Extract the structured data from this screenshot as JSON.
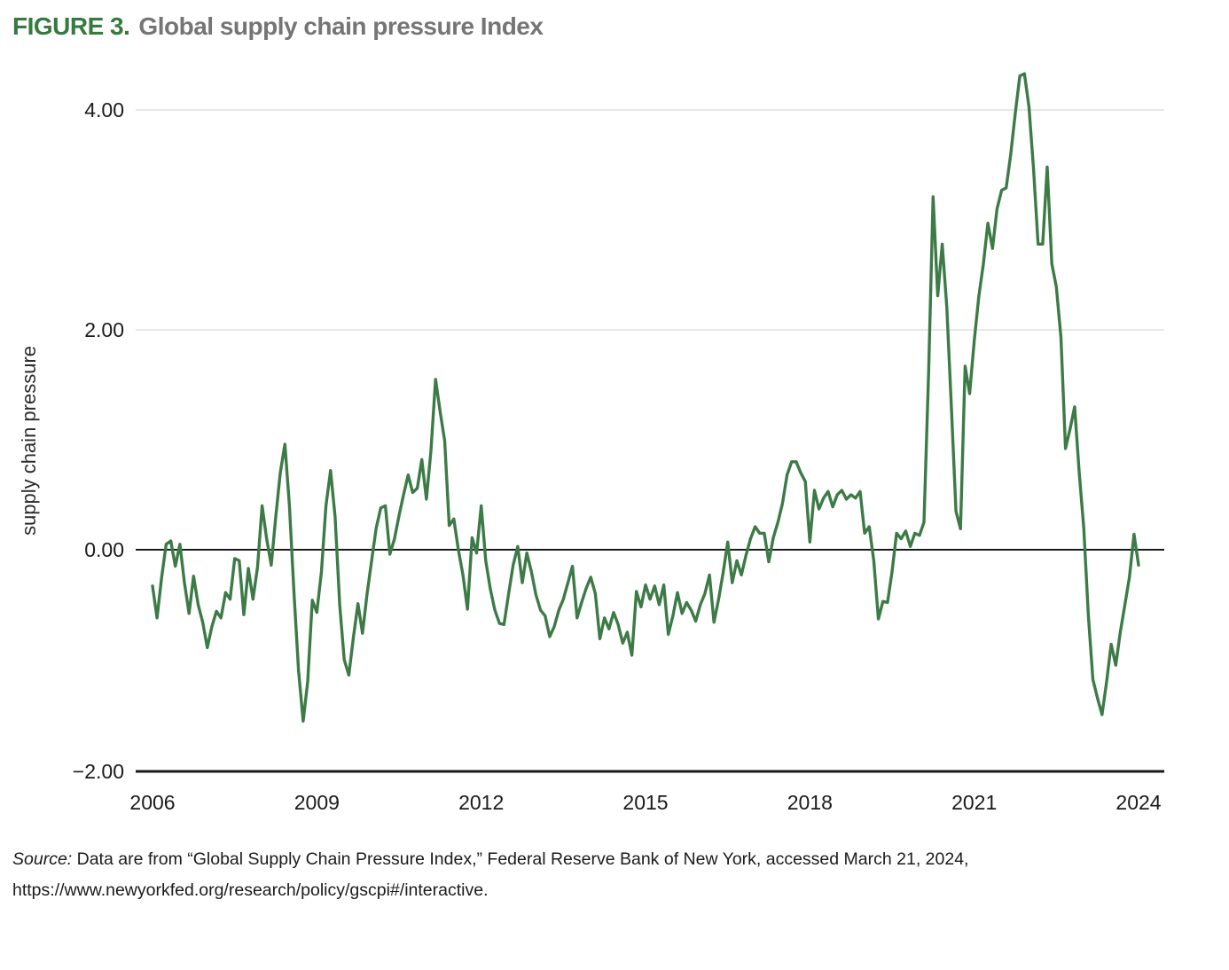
{
  "figure": {
    "label": "FIGURE 3.",
    "title": "Global supply chain pressure Index"
  },
  "chart_data": {
    "type": "line",
    "title": "Global supply chain pressure Index",
    "series_name": "Global Supply Chain Pressure Index",
    "frequency": "monthly",
    "x_start": "2006-01",
    "x_end": "2024-01",
    "xlabel": "",
    "ylabel": "supply chain pressure",
    "ylim": [
      -2.0,
      4.55
    ],
    "grid": "horizontal-light",
    "legend": "none",
    "line_color": "#3d7b46",
    "yticks": [
      {
        "value": 4,
        "label": "4.00"
      },
      {
        "value": 2,
        "label": "2.00"
      },
      {
        "value": 0,
        "label": "0.00"
      },
      {
        "value": -2,
        "label": "−2.00"
      }
    ],
    "xticks": [
      {
        "year": 2006,
        "label": "2006"
      },
      {
        "year": 2009,
        "label": "2009"
      },
      {
        "year": 2012,
        "label": "2012"
      },
      {
        "year": 2015,
        "label": "2015"
      },
      {
        "year": 2018,
        "label": "2018"
      },
      {
        "year": 2021,
        "label": "2021"
      },
      {
        "year": 2024,
        "label": "2024"
      }
    ],
    "values": [
      -0.33,
      -0.62,
      -0.25,
      0.05,
      0.08,
      -0.15,
      0.05,
      -0.3,
      -0.58,
      -0.24,
      -0.5,
      -0.66,
      -0.89,
      -0.7,
      -0.56,
      -0.62,
      -0.39,
      -0.45,
      -0.08,
      -0.1,
      -0.59,
      -0.17,
      -0.45,
      -0.16,
      0.4,
      0.1,
      -0.14,
      0.3,
      0.7,
      0.96,
      0.4,
      -0.4,
      -1.1,
      -1.56,
      -1.2,
      -0.46,
      -0.57,
      -0.2,
      0.4,
      0.72,
      0.3,
      -0.5,
      -1.0,
      -1.14,
      -0.8,
      -0.49,
      -0.76,
      -0.4,
      -0.1,
      0.2,
      0.38,
      0.4,
      -0.04,
      0.1,
      0.31,
      0.5,
      0.68,
      0.52,
      0.56,
      0.82,
      0.46,
      0.9,
      1.55,
      1.26,
      0.99,
      0.22,
      0.28,
      0.0,
      -0.23,
      -0.54,
      0.11,
      -0.03,
      0.4,
      -0.1,
      -0.36,
      -0.55,
      -0.67,
      -0.68,
      -0.4,
      -0.14,
      0.03,
      -0.3,
      -0.03,
      -0.2,
      -0.41,
      -0.55,
      -0.6,
      -0.79,
      -0.7,
      -0.55,
      -0.45,
      -0.3,
      -0.15,
      -0.62,
      -0.48,
      -0.35,
      -0.25,
      -0.4,
      -0.81,
      -0.62,
      -0.72,
      -0.57,
      -0.68,
      -0.85,
      -0.75,
      -0.96,
      -0.38,
      -0.52,
      -0.32,
      -0.45,
      -0.33,
      -0.5,
      -0.32,
      -0.77,
      -0.6,
      -0.39,
      -0.58,
      -0.48,
      -0.55,
      -0.65,
      -0.5,
      -0.4,
      -0.23,
      -0.66,
      -0.45,
      -0.21,
      0.07,
      -0.3,
      -0.1,
      -0.23,
      -0.05,
      0.1,
      0.21,
      0.15,
      0.15,
      -0.11,
      0.11,
      0.25,
      0.42,
      0.68,
      0.8,
      0.8,
      0.7,
      0.62,
      0.07,
      0.54,
      0.37,
      0.47,
      0.53,
      0.39,
      0.5,
      0.54,
      0.46,
      0.5,
      0.47,
      0.53,
      0.15,
      0.21,
      -0.1,
      -0.63,
      -0.47,
      -0.48,
      -0.2,
      0.15,
      0.1,
      0.17,
      0.03,
      0.15,
      0.13,
      0.25,
      1.6,
      3.21,
      2.31,
      2.78,
      2.2,
      1.3,
      0.35,
      0.19,
      1.67,
      1.42,
      1.9,
      2.3,
      2.6,
      2.97,
      2.74,
      3.1,
      3.27,
      3.29,
      3.6,
      3.97,
      4.31,
      4.33,
      4.03,
      3.46,
      2.78,
      2.78,
      3.48,
      2.6,
      2.39,
      1.93,
      0.92,
      1.1,
      1.3,
      0.7,
      0.2,
      -0.6,
      -1.18,
      -1.35,
      -1.5,
      -1.2,
      -0.86,
      -1.05,
      -0.75,
      -0.5,
      -0.25,
      0.14,
      -0.14
    ]
  },
  "source": {
    "prefix": "Source:",
    "line1": "Data are from “Global Supply Chain Pressure Index,” Federal Reserve Bank of New York, accessed March 21, 2024,",
    "line2": "https://www.newyorkfed.org/research/policy/gscpi#/interactive."
  },
  "colors": {
    "figure_label": "#357a3f",
    "figure_title": "#757575",
    "text": "#1b1b1b",
    "gridline": "#e0e0e0",
    "axis": "#1a1a1a",
    "line": "#3d7b46"
  }
}
